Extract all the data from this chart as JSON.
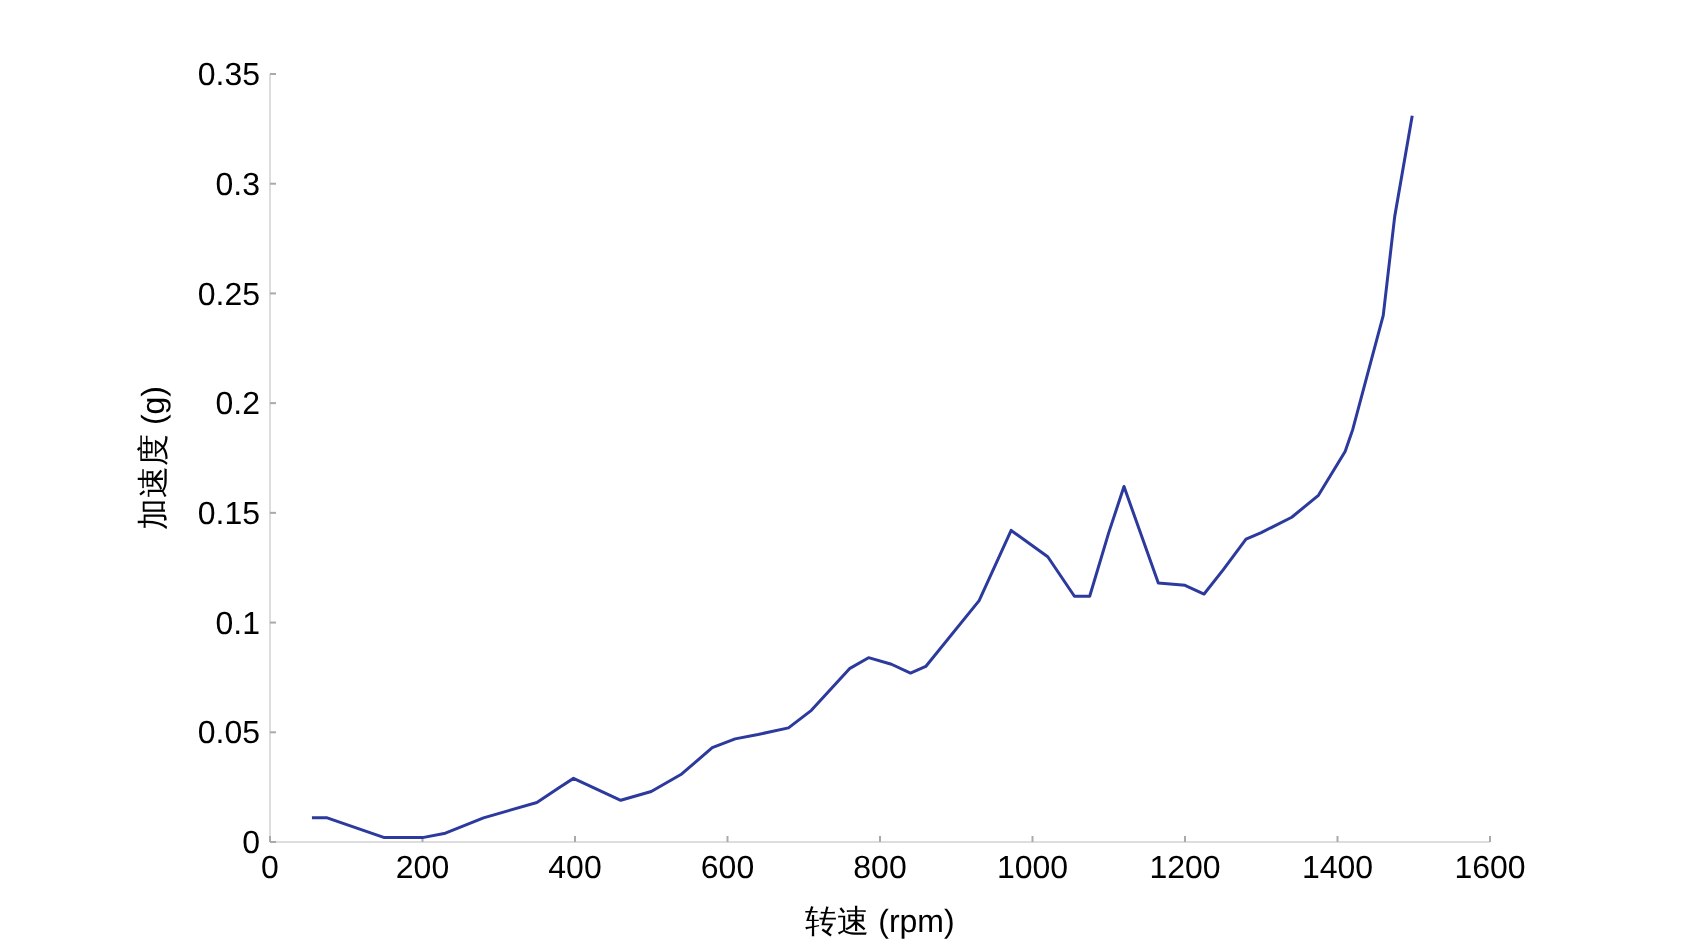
{
  "chart_data": {
    "type": "line",
    "xlabel": "转速 (rpm)",
    "ylabel": "加速度 (g)",
    "xlim": [
      0,
      1600
    ],
    "xticks": [
      0,
      200,
      400,
      600,
      800,
      1000,
      1200,
      1400,
      1600
    ],
    "ylim": [
      0,
      0.35
    ],
    "yticks": [
      0,
      0.05,
      0.1,
      0.15,
      0.2,
      0.25,
      0.3,
      0.35
    ],
    "series": [
      {
        "color": "#2b3a9c",
        "x": [
          55,
          75,
          150,
          200,
          230,
          280,
          350,
          380,
          398,
          460,
          500,
          540,
          580,
          610,
          640,
          680,
          710,
          760,
          785,
          815,
          840,
          860,
          930,
          972,
          1020,
          1055,
          1075,
          1100,
          1120,
          1165,
          1200,
          1225,
          1250,
          1280,
          1300,
          1340,
          1375,
          1410,
          1420,
          1460,
          1475,
          1498
        ],
        "values": [
          0.011,
          0.011,
          0.002,
          0.002,
          0.004,
          0.011,
          0.018,
          0.025,
          0.029,
          0.019,
          0.023,
          0.031,
          0.043,
          0.047,
          0.049,
          0.052,
          0.06,
          0.079,
          0.084,
          0.081,
          0.077,
          0.08,
          0.11,
          0.142,
          0.13,
          0.112,
          0.112,
          0.141,
          0.162,
          0.118,
          0.117,
          0.113,
          0.124,
          0.138,
          0.141,
          0.148,
          0.158,
          0.178,
          0.188,
          0.24,
          0.285,
          0.331
        ]
      }
    ]
  }
}
